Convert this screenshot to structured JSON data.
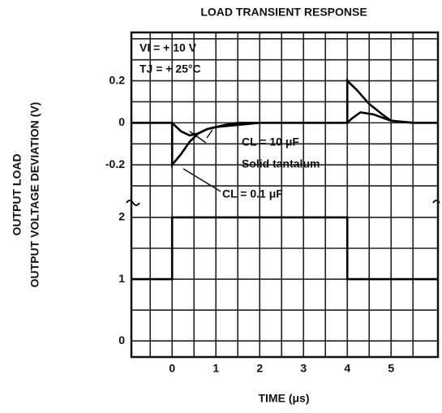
{
  "chart_data": [
    {
      "type": "line",
      "title": "LOAD TRANSIENT RESPONSE",
      "ylabel": "OUTPUT VOLTAGE DEVIATION (V)",
      "xlim": [
        -0.93,
        6.07
      ],
      "xgrid": [
        -0.5,
        0,
        0.5,
        1,
        1.5,
        2,
        2.5,
        3,
        3.5,
        4,
        4.5,
        5,
        5.5
      ],
      "ylim": [
        -0.4,
        0.43
      ],
      "yticks": [
        0.2,
        0,
        -0.2
      ],
      "ygrid": [
        0.4,
        0.3,
        0.1,
        -0.1,
        -0.3
      ],
      "annotations": [
        "VI = + 10 V",
        "TJ = + 25°C",
        "CL = 10 μF",
        "Solid tantalum",
        "CL = 0.1 μF"
      ],
      "series": [
        {
          "name": "CL = 10 μF",
          "color": "#000000",
          "x": [
            -0.93,
            0,
            0.1,
            0.2,
            0.4,
            0.6,
            0.8,
            1.0,
            1.5,
            2,
            4,
            4.1,
            4.3,
            4.6,
            5,
            5.5,
            6.07
          ],
          "values": [
            0,
            0,
            -0.02,
            -0.04,
            -0.06,
            -0.05,
            -0.03,
            -0.02,
            -0.01,
            0,
            0,
            0.02,
            0.05,
            0.04,
            0.01,
            0,
            0
          ]
        },
        {
          "name": "CL = 0.1 μF",
          "color": "#000000",
          "x": [
            -0.93,
            0,
            0,
            0.2,
            0.4,
            0.6,
            0.8,
            1.0,
            1.2,
            1.5,
            4,
            4,
            4.2,
            4.5,
            4.8,
            5.0,
            5.5,
            6.07
          ],
          "values": [
            0,
            0,
            -0.2,
            -0.15,
            -0.09,
            -0.05,
            -0.03,
            -0.02,
            -0.01,
            0,
            0,
            0.2,
            0.16,
            0.09,
            0.04,
            0.01,
            0,
            0
          ]
        }
      ]
    },
    {
      "type": "line",
      "ylabel": "OUTPUT LOAD",
      "xlabel": "TIME (μs)",
      "xlim": [
        -0.93,
        6.07
      ],
      "xticks": [
        0,
        1,
        2,
        3,
        4,
        5
      ],
      "xgrid": [
        -0.5,
        0.5,
        1.5,
        2.5,
        3.5,
        4.5,
        5.5
      ],
      "ylim": [
        -0.26,
        2.17
      ],
      "yticks": [
        2,
        1,
        0
      ],
      "ygrid": [
        1.5,
        0.5
      ],
      "series": [
        {
          "color": "#000000",
          "x": [
            -0.93,
            0,
            0,
            4,
            4,
            6.07
          ],
          "values": [
            1,
            1,
            2,
            2,
            1,
            1
          ]
        }
      ]
    }
  ]
}
